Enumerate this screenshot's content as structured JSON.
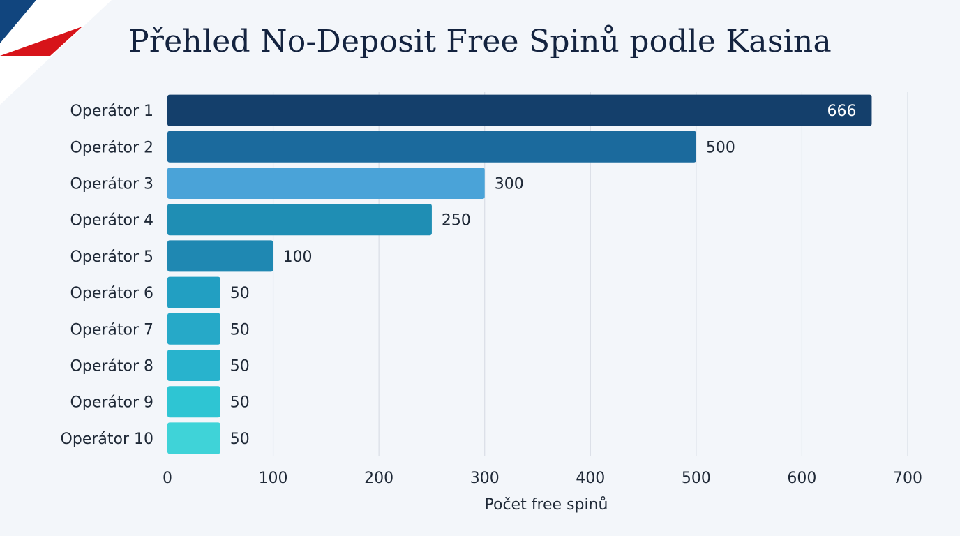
{
  "chart_data": {
    "type": "bar",
    "orientation": "horizontal",
    "title": "Přehled No-Deposit Free Spinů podle Kasina",
    "xlabel": "Počet free spinů",
    "ylabel": "",
    "xlim": [
      0,
      700
    ],
    "xticks": [
      0,
      100,
      200,
      300,
      400,
      500,
      600,
      700
    ],
    "grid": "vertical",
    "legend": "none",
    "categories": [
      "Operátor 1",
      "Operátor 2",
      "Operátor 3",
      "Operátor 4",
      "Operátor 5",
      "Operátor 6",
      "Operátor 7",
      "Operátor 8",
      "Operátor 9",
      "Operátor 10"
    ],
    "values": [
      666,
      500,
      300,
      250,
      100,
      50,
      50,
      50,
      50,
      50
    ],
    "value_labels": [
      "666",
      "500",
      "300",
      "250",
      "100",
      "50",
      "50",
      "50",
      "50",
      "50"
    ],
    "bar_colors": [
      "#143f6b",
      "#1b6a9d",
      "#4aa3d8",
      "#1f8eb4",
      "#1f88b2",
      "#229fc2",
      "#26a9c8",
      "#28b3cd",
      "#2ec5d3",
      "#3fd3d8"
    ]
  },
  "decor": {
    "flag_colors": [
      "#ffffff",
      "#d7141a",
      "#11457e"
    ]
  }
}
